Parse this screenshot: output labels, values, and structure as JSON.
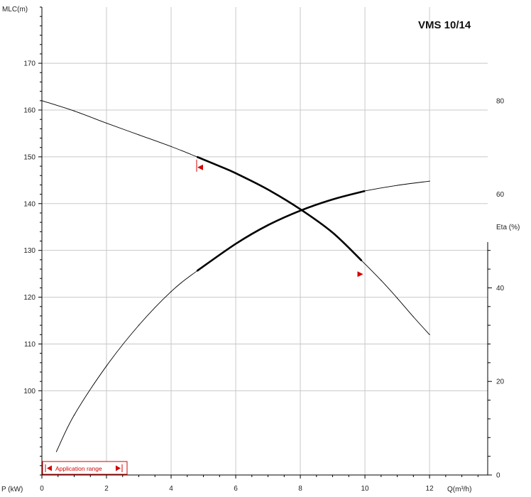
{
  "chart_data": {
    "type": "line",
    "title": "VMS 10/14",
    "xlabel": "Q(m³/h)",
    "ylabel_left": "MLC(m)",
    "ylabel_right": "Eta (%)",
    "ylabel_bottom_left": "P (kW)",
    "xlim": [
      0,
      13.8
    ],
    "ylim": [
      82,
      182
    ],
    "eta_lim": [
      0,
      100
    ],
    "grid": true,
    "x_ticks": [
      0,
      2,
      4,
      6,
      8,
      10,
      12
    ],
    "y_ticks_left": [
      100,
      110,
      120,
      130,
      140,
      150,
      160,
      170
    ],
    "y_ticks_right": [
      0,
      20,
      40,
      60,
      80
    ],
    "series": [
      {
        "x": [
          0,
          1,
          2,
          3,
          4,
          4.8,
          5.5,
          6,
          7,
          8,
          9,
          9.9,
          10.5,
          11,
          11.5,
          12
        ],
        "values": [
          162,
          159.8,
          157.2,
          154.7,
          152.2,
          150,
          148,
          146.5,
          143,
          138.8,
          133.8,
          127.8,
          123.6,
          119.8,
          115.8,
          112
        ],
        "axis": "MLC",
        "highlight_range": [
          4.8,
          9.9
        ]
      },
      {
        "x": [
          0.45,
          1,
          2,
          3,
          4,
          4.8,
          6,
          7,
          8,
          9,
          10,
          11,
          12
        ],
        "values": [
          5,
          12.8,
          23.3,
          32,
          39.2,
          43.6,
          49.4,
          53.4,
          56.5,
          58.9,
          60.7,
          61.9,
          62.8
        ],
        "axis": "Eta",
        "highlight_range": [
          4.8,
          10
        ]
      }
    ],
    "application_range": {
      "label": "Application range",
      "start": 4.9,
      "end": 9.9
    }
  }
}
